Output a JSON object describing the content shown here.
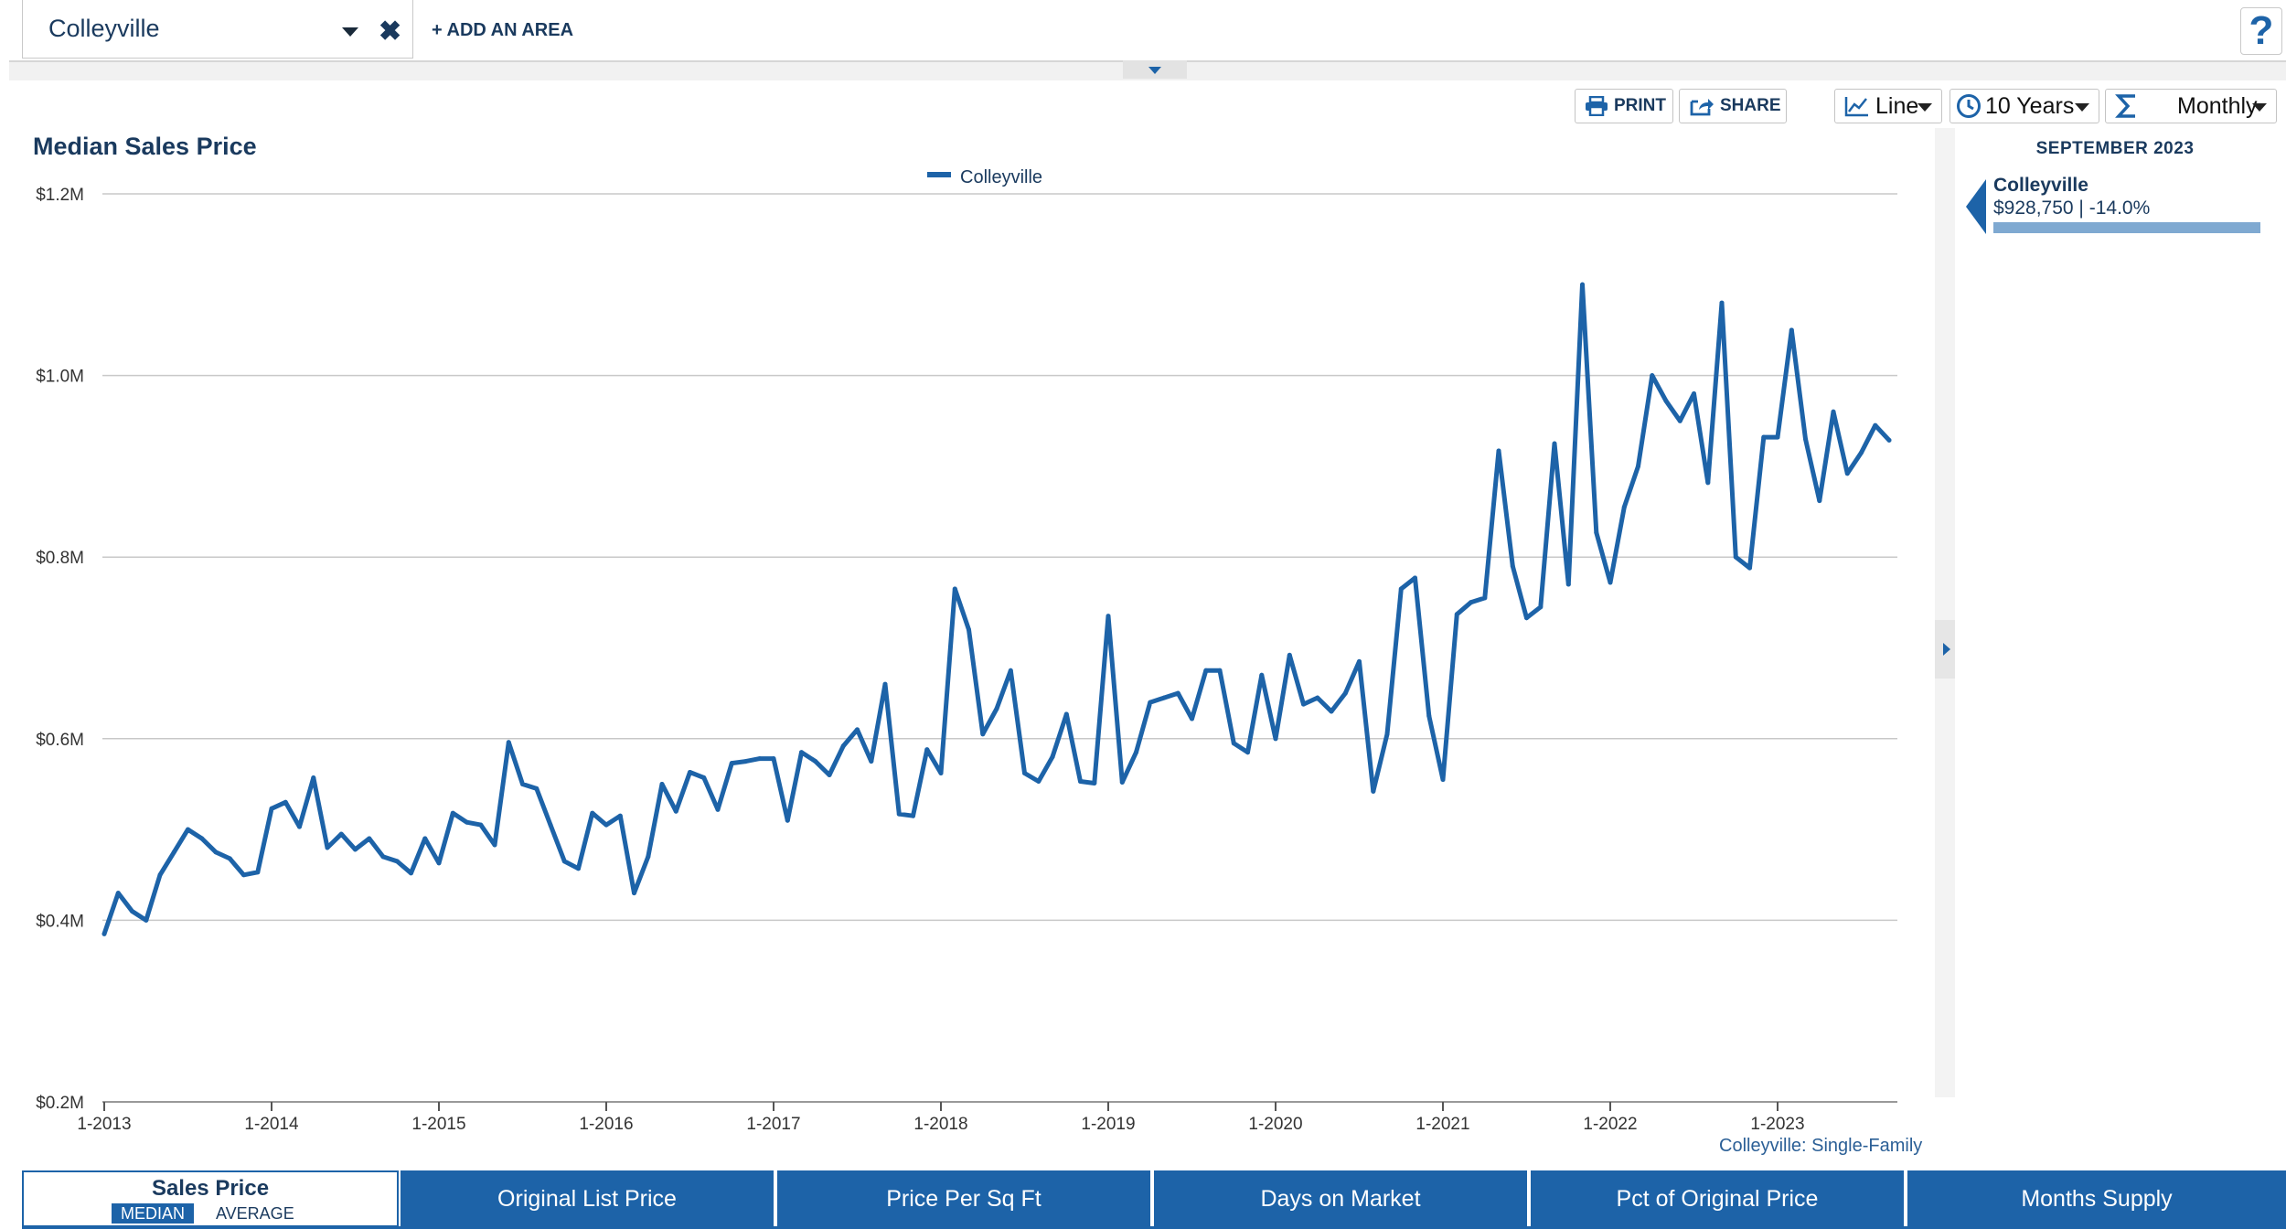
{
  "filter": {
    "area": "Colleyville",
    "add_area": "+ ADD AN AREA",
    "help": "?"
  },
  "toolbar": {
    "print": "PRINT",
    "share": "SHARE",
    "chart_type": "Line",
    "range": "10 Years",
    "frequency": "Monthly"
  },
  "chart_data": {
    "type": "line",
    "title": "Median Sales Price",
    "xlabel": "",
    "ylabel": "",
    "ylim": [
      200000,
      1200000
    ],
    "yticks": [
      200000,
      400000,
      600000,
      800000,
      1000000,
      1200000
    ],
    "ytick_labels": [
      "$0.2M",
      "$0.4M",
      "$0.6M",
      "$0.8M",
      "$1.0M",
      "$1.2M"
    ],
    "xtick_labels": [
      "1-2013",
      "1-2014",
      "1-2015",
      "1-2016",
      "1-2017",
      "1-2018",
      "1-2019",
      "1-2020",
      "1-2021",
      "1-2022",
      "1-2023"
    ],
    "x_start": "1-2013",
    "x_end": "9-2023",
    "grid": true,
    "legend": "top-center",
    "colors": {
      "series": "#1d63a8",
      "grid": "#c8c8c8"
    },
    "series": [
      {
        "name": "Colleyville",
        "values": [
          385000,
          430000,
          410000,
          400000,
          450000,
          475000,
          500000,
          490000,
          475000,
          468000,
          450000,
          453000,
          523000,
          530000,
          503000,
          557000,
          480000,
          495000,
          478000,
          490000,
          470000,
          465000,
          452000,
          490000,
          463000,
          518000,
          508000,
          505000,
          483000,
          596000,
          550000,
          545000,
          505000,
          465000,
          457000,
          518000,
          505000,
          515000,
          430000,
          470000,
          550000,
          520000,
          563000,
          557000,
          522000,
          573000,
          575000,
          578000,
          578000,
          510000,
          585000,
          575000,
          560000,
          592000,
          610000,
          575000,
          660000,
          517000,
          515000,
          588000,
          562000,
          765000,
          720000,
          605000,
          633000,
          675000,
          562000,
          553000,
          580000,
          627000,
          553000,
          551000,
          735000,
          552000,
          585000,
          640000,
          645000,
          650000,
          622000,
          675000,
          675000,
          595000,
          585000,
          670000,
          600000,
          692000,
          638000,
          645000,
          630000,
          650000,
          685000,
          542000,
          605000,
          765000,
          777000,
          625000,
          555000,
          737000,
          750000,
          755000,
          917000,
          790000,
          733000,
          745000,
          925000,
          770000,
          1100000,
          827000,
          772000,
          855000,
          900000,
          1000000,
          972000,
          950000,
          980000,
          882000,
          1080000,
          800000,
          788000,
          932000,
          932000,
          1050000,
          930000,
          862000,
          960000,
          892000,
          915000,
          945000,
          928750
        ]
      }
    ],
    "source": "Colleyville: Single-Family"
  },
  "panel": {
    "date": "SEPTEMBER 2023",
    "series": "Colleyville",
    "value": "$928,750 | -14.0%",
    "color": "#7fa9d1"
  },
  "tabs": {
    "sales_price": "Sales Price",
    "median": "MEDIAN",
    "average": "AVERAGE",
    "others": [
      "Original List Price",
      "Price Per Sq Ft",
      "Days on Market",
      "Pct of Original Price",
      "Months Supply"
    ]
  }
}
